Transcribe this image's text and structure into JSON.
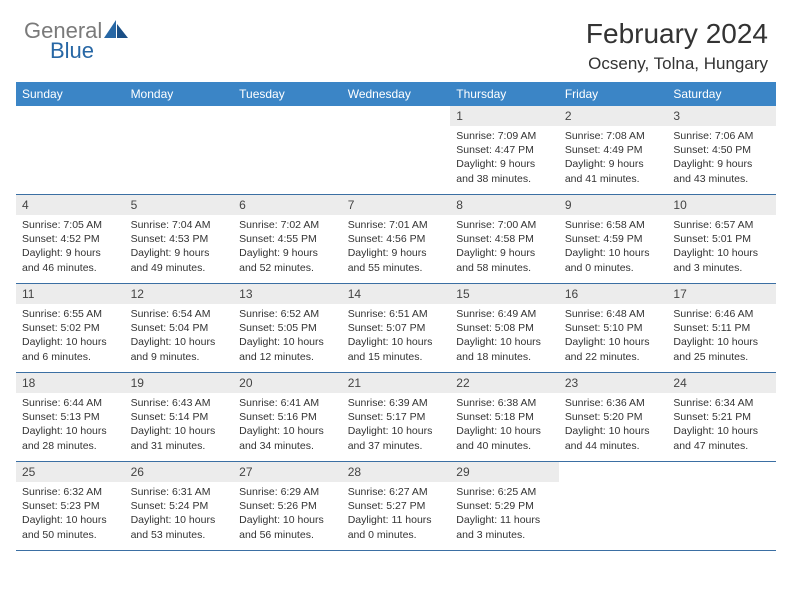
{
  "logo": {
    "word1": "General",
    "word2": "Blue"
  },
  "title": "February 2024",
  "location": "Ocseny, Tolna, Hungary",
  "colors": {
    "header_bg": "#3b85c6",
    "header_text": "#ffffff",
    "daynum_bg": "#ececec",
    "text": "#333333",
    "rule": "#3b6fa3",
    "logo_grey": "#7a7a7a",
    "logo_blue": "#2767a5"
  },
  "weekdays": [
    "Sunday",
    "Monday",
    "Tuesday",
    "Wednesday",
    "Thursday",
    "Friday",
    "Saturday"
  ],
  "weeks": [
    [
      {
        "n": "",
        "empty": true
      },
      {
        "n": "",
        "empty": true
      },
      {
        "n": "",
        "empty": true
      },
      {
        "n": "",
        "empty": true
      },
      {
        "n": "1",
        "sunrise": "Sunrise: 7:09 AM",
        "sunset": "Sunset: 4:47 PM",
        "day1": "Daylight: 9 hours",
        "day2": "and 38 minutes."
      },
      {
        "n": "2",
        "sunrise": "Sunrise: 7:08 AM",
        "sunset": "Sunset: 4:49 PM",
        "day1": "Daylight: 9 hours",
        "day2": "and 41 minutes."
      },
      {
        "n": "3",
        "sunrise": "Sunrise: 7:06 AM",
        "sunset": "Sunset: 4:50 PM",
        "day1": "Daylight: 9 hours",
        "day2": "and 43 minutes."
      }
    ],
    [
      {
        "n": "4",
        "sunrise": "Sunrise: 7:05 AM",
        "sunset": "Sunset: 4:52 PM",
        "day1": "Daylight: 9 hours",
        "day2": "and 46 minutes."
      },
      {
        "n": "5",
        "sunrise": "Sunrise: 7:04 AM",
        "sunset": "Sunset: 4:53 PM",
        "day1": "Daylight: 9 hours",
        "day2": "and 49 minutes."
      },
      {
        "n": "6",
        "sunrise": "Sunrise: 7:02 AM",
        "sunset": "Sunset: 4:55 PM",
        "day1": "Daylight: 9 hours",
        "day2": "and 52 minutes."
      },
      {
        "n": "7",
        "sunrise": "Sunrise: 7:01 AM",
        "sunset": "Sunset: 4:56 PM",
        "day1": "Daylight: 9 hours",
        "day2": "and 55 minutes."
      },
      {
        "n": "8",
        "sunrise": "Sunrise: 7:00 AM",
        "sunset": "Sunset: 4:58 PM",
        "day1": "Daylight: 9 hours",
        "day2": "and 58 minutes."
      },
      {
        "n": "9",
        "sunrise": "Sunrise: 6:58 AM",
        "sunset": "Sunset: 4:59 PM",
        "day1": "Daylight: 10 hours",
        "day2": "and 0 minutes."
      },
      {
        "n": "10",
        "sunrise": "Sunrise: 6:57 AM",
        "sunset": "Sunset: 5:01 PM",
        "day1": "Daylight: 10 hours",
        "day2": "and 3 minutes."
      }
    ],
    [
      {
        "n": "11",
        "sunrise": "Sunrise: 6:55 AM",
        "sunset": "Sunset: 5:02 PM",
        "day1": "Daylight: 10 hours",
        "day2": "and 6 minutes."
      },
      {
        "n": "12",
        "sunrise": "Sunrise: 6:54 AM",
        "sunset": "Sunset: 5:04 PM",
        "day1": "Daylight: 10 hours",
        "day2": "and 9 minutes."
      },
      {
        "n": "13",
        "sunrise": "Sunrise: 6:52 AM",
        "sunset": "Sunset: 5:05 PM",
        "day1": "Daylight: 10 hours",
        "day2": "and 12 minutes."
      },
      {
        "n": "14",
        "sunrise": "Sunrise: 6:51 AM",
        "sunset": "Sunset: 5:07 PM",
        "day1": "Daylight: 10 hours",
        "day2": "and 15 minutes."
      },
      {
        "n": "15",
        "sunrise": "Sunrise: 6:49 AM",
        "sunset": "Sunset: 5:08 PM",
        "day1": "Daylight: 10 hours",
        "day2": "and 18 minutes."
      },
      {
        "n": "16",
        "sunrise": "Sunrise: 6:48 AM",
        "sunset": "Sunset: 5:10 PM",
        "day1": "Daylight: 10 hours",
        "day2": "and 22 minutes."
      },
      {
        "n": "17",
        "sunrise": "Sunrise: 6:46 AM",
        "sunset": "Sunset: 5:11 PM",
        "day1": "Daylight: 10 hours",
        "day2": "and 25 minutes."
      }
    ],
    [
      {
        "n": "18",
        "sunrise": "Sunrise: 6:44 AM",
        "sunset": "Sunset: 5:13 PM",
        "day1": "Daylight: 10 hours",
        "day2": "and 28 minutes."
      },
      {
        "n": "19",
        "sunrise": "Sunrise: 6:43 AM",
        "sunset": "Sunset: 5:14 PM",
        "day1": "Daylight: 10 hours",
        "day2": "and 31 minutes."
      },
      {
        "n": "20",
        "sunrise": "Sunrise: 6:41 AM",
        "sunset": "Sunset: 5:16 PM",
        "day1": "Daylight: 10 hours",
        "day2": "and 34 minutes."
      },
      {
        "n": "21",
        "sunrise": "Sunrise: 6:39 AM",
        "sunset": "Sunset: 5:17 PM",
        "day1": "Daylight: 10 hours",
        "day2": "and 37 minutes."
      },
      {
        "n": "22",
        "sunrise": "Sunrise: 6:38 AM",
        "sunset": "Sunset: 5:18 PM",
        "day1": "Daylight: 10 hours",
        "day2": "and 40 minutes."
      },
      {
        "n": "23",
        "sunrise": "Sunrise: 6:36 AM",
        "sunset": "Sunset: 5:20 PM",
        "day1": "Daylight: 10 hours",
        "day2": "and 44 minutes."
      },
      {
        "n": "24",
        "sunrise": "Sunrise: 6:34 AM",
        "sunset": "Sunset: 5:21 PM",
        "day1": "Daylight: 10 hours",
        "day2": "and 47 minutes."
      }
    ],
    [
      {
        "n": "25",
        "sunrise": "Sunrise: 6:32 AM",
        "sunset": "Sunset: 5:23 PM",
        "day1": "Daylight: 10 hours",
        "day2": "and 50 minutes."
      },
      {
        "n": "26",
        "sunrise": "Sunrise: 6:31 AM",
        "sunset": "Sunset: 5:24 PM",
        "day1": "Daylight: 10 hours",
        "day2": "and 53 minutes."
      },
      {
        "n": "27",
        "sunrise": "Sunrise: 6:29 AM",
        "sunset": "Sunset: 5:26 PM",
        "day1": "Daylight: 10 hours",
        "day2": "and 56 minutes."
      },
      {
        "n": "28",
        "sunrise": "Sunrise: 6:27 AM",
        "sunset": "Sunset: 5:27 PM",
        "day1": "Daylight: 11 hours",
        "day2": "and 0 minutes."
      },
      {
        "n": "29",
        "sunrise": "Sunrise: 6:25 AM",
        "sunset": "Sunset: 5:29 PM",
        "day1": "Daylight: 11 hours",
        "day2": "and 3 minutes."
      },
      {
        "n": "",
        "empty": true
      },
      {
        "n": "",
        "empty": true
      }
    ]
  ]
}
